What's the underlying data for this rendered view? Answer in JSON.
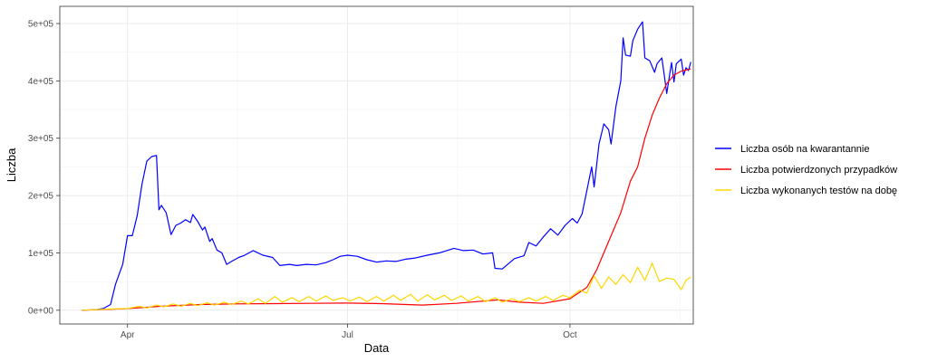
{
  "chart_data": {
    "type": "line",
    "xlabel": "Data",
    "ylabel": "Liczba",
    "x_range": [
      "2020-03-04",
      "2020-11-21"
    ],
    "y_range": [
      -24000,
      530000
    ],
    "x_ticks": [
      {
        "date": "2020-04-01",
        "label": "Apr"
      },
      {
        "date": "2020-07-01",
        "label": "Jul"
      },
      {
        "date": "2020-10-01",
        "label": "Oct"
      }
    ],
    "y_ticks": [
      {
        "value": 0,
        "label": "0e+00"
      },
      {
        "value": 100000,
        "label": "1e+05"
      },
      {
        "value": 200000,
        "label": "2e+05"
      },
      {
        "value": 300000,
        "label": "3e+05"
      },
      {
        "value": 400000,
        "label": "4e+05"
      },
      {
        "value": 500000,
        "label": "5e+05"
      }
    ],
    "grid": true,
    "legend_position": "right",
    "series": [
      {
        "name": "Liczba osób na kwarantannie",
        "color": "#0000ff",
        "points": [
          [
            "2020-03-13",
            0
          ],
          [
            "2020-03-19",
            1000
          ],
          [
            "2020-03-22",
            3000
          ],
          [
            "2020-03-25",
            10000
          ],
          [
            "2020-03-27",
            45000
          ],
          [
            "2020-03-30",
            80000
          ],
          [
            "2020-04-01",
            130000
          ],
          [
            "2020-04-03",
            130000
          ],
          [
            "2020-04-05",
            165000
          ],
          [
            "2020-04-07",
            220000
          ],
          [
            "2020-04-09",
            260000
          ],
          [
            "2020-04-11",
            268000
          ],
          [
            "2020-04-13",
            270000
          ],
          [
            "2020-04-14",
            175000
          ],
          [
            "2020-04-15",
            183000
          ],
          [
            "2020-04-17",
            170000
          ],
          [
            "2020-04-19",
            132000
          ],
          [
            "2020-04-21",
            148000
          ],
          [
            "2020-04-23",
            152000
          ],
          [
            "2020-04-25",
            158000
          ],
          [
            "2020-04-27",
            153000
          ],
          [
            "2020-04-28",
            167000
          ],
          [
            "2020-04-30",
            155000
          ],
          [
            "2020-05-02",
            140000
          ],
          [
            "2020-05-03",
            145000
          ],
          [
            "2020-05-05",
            120000
          ],
          [
            "2020-05-06",
            125000
          ],
          [
            "2020-05-08",
            105000
          ],
          [
            "2020-05-10",
            100000
          ],
          [
            "2020-05-12",
            80000
          ],
          [
            "2020-05-14",
            85000
          ],
          [
            "2020-05-17",
            92000
          ],
          [
            "2020-05-19",
            95000
          ],
          [
            "2020-05-23",
            104000
          ],
          [
            "2020-05-27",
            96000
          ],
          [
            "2020-05-31",
            92000
          ],
          [
            "2020-06-03",
            78000
          ],
          [
            "2020-06-07",
            80000
          ],
          [
            "2020-06-10",
            78000
          ],
          [
            "2020-06-14",
            80000
          ],
          [
            "2020-06-18",
            79000
          ],
          [
            "2020-06-22",
            83000
          ],
          [
            "2020-06-25",
            88000
          ],
          [
            "2020-06-28",
            94000
          ],
          [
            "2020-07-01",
            96000
          ],
          [
            "2020-07-05",
            94000
          ],
          [
            "2020-07-09",
            88000
          ],
          [
            "2020-07-13",
            84000
          ],
          [
            "2020-07-17",
            86000
          ],
          [
            "2020-07-21",
            85000
          ],
          [
            "2020-07-25",
            89000
          ],
          [
            "2020-07-29",
            91000
          ],
          [
            "2020-08-03",
            96000
          ],
          [
            "2020-08-08",
            100000
          ],
          [
            "2020-08-11",
            104000
          ],
          [
            "2020-08-14",
            108000
          ],
          [
            "2020-08-18",
            104000
          ],
          [
            "2020-08-22",
            105000
          ],
          [
            "2020-08-26",
            98000
          ],
          [
            "2020-08-30",
            100000
          ],
          [
            "2020-08-31",
            73000
          ],
          [
            "2020-09-03",
            72000
          ],
          [
            "2020-09-08",
            90000
          ],
          [
            "2020-09-12",
            95000
          ],
          [
            "2020-09-14",
            118000
          ],
          [
            "2020-09-17",
            112000
          ],
          [
            "2020-09-20",
            128000
          ],
          [
            "2020-09-23",
            142000
          ],
          [
            "2020-09-26",
            131000
          ],
          [
            "2020-09-29",
            148000
          ],
          [
            "2020-10-02",
            160000
          ],
          [
            "2020-10-04",
            152000
          ],
          [
            "2020-10-06",
            168000
          ],
          [
            "2020-10-09",
            230000
          ],
          [
            "2020-10-10",
            250000
          ],
          [
            "2020-10-11",
            215000
          ],
          [
            "2020-10-13",
            290000
          ],
          [
            "2020-10-15",
            325000
          ],
          [
            "2020-10-17",
            315000
          ],
          [
            "2020-10-18",
            290000
          ],
          [
            "2020-10-20",
            355000
          ],
          [
            "2020-10-22",
            400000
          ],
          [
            "2020-10-23",
            475000
          ],
          [
            "2020-10-24",
            445000
          ],
          [
            "2020-10-26",
            443000
          ],
          [
            "2020-10-27",
            470000
          ],
          [
            "2020-10-29",
            490000
          ],
          [
            "2020-10-31",
            503000
          ],
          [
            "2020-11-01",
            440000
          ],
          [
            "2020-11-03",
            435000
          ],
          [
            "2020-11-05",
            415000
          ],
          [
            "2020-11-06",
            430000
          ],
          [
            "2020-11-08",
            440000
          ],
          [
            "2020-11-09",
            410000
          ],
          [
            "2020-11-10",
            378000
          ],
          [
            "2020-11-12",
            432000
          ],
          [
            "2020-11-13",
            398000
          ],
          [
            "2020-11-14",
            430000
          ],
          [
            "2020-11-16",
            438000
          ],
          [
            "2020-11-17",
            410000
          ],
          [
            "2020-11-18",
            423000
          ],
          [
            "2020-11-19",
            418000
          ],
          [
            "2020-11-20",
            433000
          ]
        ]
      },
      {
        "name": "Liczba potwierdzonych przypadków",
        "color": "#ff0000",
        "points": [
          [
            "2020-03-13",
            0
          ],
          [
            "2020-03-31",
            2500
          ],
          [
            "2020-04-15",
            7000
          ],
          [
            "2020-05-01",
            10000
          ],
          [
            "2020-05-15",
            11000
          ],
          [
            "2020-06-01",
            11500
          ],
          [
            "2020-06-15",
            12000
          ],
          [
            "2020-07-01",
            12500
          ],
          [
            "2020-07-15",
            11500
          ],
          [
            "2020-08-01",
            9000
          ],
          [
            "2020-08-15",
            12000
          ],
          [
            "2020-09-01",
            18000
          ],
          [
            "2020-09-10",
            14000
          ],
          [
            "2020-09-20",
            12000
          ],
          [
            "2020-10-01",
            20000
          ],
          [
            "2020-10-08",
            40000
          ],
          [
            "2020-10-12",
            70000
          ],
          [
            "2020-10-15",
            100000
          ],
          [
            "2020-10-18",
            130000
          ],
          [
            "2020-10-22",
            170000
          ],
          [
            "2020-10-26",
            225000
          ],
          [
            "2020-10-29",
            250000
          ],
          [
            "2020-11-01",
            300000
          ],
          [
            "2020-11-04",
            340000
          ],
          [
            "2020-11-07",
            370000
          ],
          [
            "2020-11-10",
            395000
          ],
          [
            "2020-11-13",
            410000
          ],
          [
            "2020-11-16",
            417000
          ],
          [
            "2020-11-20",
            421000
          ]
        ]
      },
      {
        "name": "Liczba wykonanych testów na dobę",
        "color": "#ffd700",
        "points": [
          [
            "2020-03-13",
            0
          ],
          [
            "2020-03-24",
            2000
          ],
          [
            "2020-04-01",
            3000
          ],
          [
            "2020-04-06",
            7000
          ],
          [
            "2020-04-09",
            4000
          ],
          [
            "2020-04-13",
            9000
          ],
          [
            "2020-04-16",
            6000
          ],
          [
            "2020-04-20",
            11000
          ],
          [
            "2020-04-23",
            7000
          ],
          [
            "2020-04-27",
            12000
          ],
          [
            "2020-04-30",
            8000
          ],
          [
            "2020-05-04",
            13000
          ],
          [
            "2020-05-07",
            9000
          ],
          [
            "2020-05-11",
            14000
          ],
          [
            "2020-05-14",
            10000
          ],
          [
            "2020-05-18",
            16000
          ],
          [
            "2020-05-21",
            11000
          ],
          [
            "2020-05-25",
            20000
          ],
          [
            "2020-05-28",
            12000
          ],
          [
            "2020-06-01",
            24000
          ],
          [
            "2020-06-04",
            14000
          ],
          [
            "2020-06-08",
            22000
          ],
          [
            "2020-06-11",
            15000
          ],
          [
            "2020-06-15",
            24000
          ],
          [
            "2020-06-18",
            16000
          ],
          [
            "2020-06-22",
            25000
          ],
          [
            "2020-06-25",
            17000
          ],
          [
            "2020-06-29",
            22000
          ],
          [
            "2020-07-02",
            16000
          ],
          [
            "2020-07-06",
            23000
          ],
          [
            "2020-07-09",
            15000
          ],
          [
            "2020-07-13",
            24000
          ],
          [
            "2020-07-16",
            16000
          ],
          [
            "2020-07-20",
            26000
          ],
          [
            "2020-07-23",
            17000
          ],
          [
            "2020-07-27",
            28000
          ],
          [
            "2020-07-30",
            16000
          ],
          [
            "2020-08-03",
            27000
          ],
          [
            "2020-08-06",
            18000
          ],
          [
            "2020-08-10",
            26000
          ],
          [
            "2020-08-13",
            17000
          ],
          [
            "2020-08-17",
            25000
          ],
          [
            "2020-08-20",
            16000
          ],
          [
            "2020-08-24",
            24000
          ],
          [
            "2020-08-27",
            15000
          ],
          [
            "2020-08-31",
            22000
          ],
          [
            "2020-09-03",
            14000
          ],
          [
            "2020-09-07",
            20000
          ],
          [
            "2020-09-10",
            15000
          ],
          [
            "2020-09-14",
            22000
          ],
          [
            "2020-09-17",
            16000
          ],
          [
            "2020-09-21",
            24000
          ],
          [
            "2020-09-24",
            17000
          ],
          [
            "2020-09-28",
            26000
          ],
          [
            "2020-10-01",
            22000
          ],
          [
            "2020-10-05",
            35000
          ],
          [
            "2020-10-08",
            30000
          ],
          [
            "2020-10-11",
            60000
          ],
          [
            "2020-10-14",
            38000
          ],
          [
            "2020-10-17",
            58000
          ],
          [
            "2020-10-20",
            45000
          ],
          [
            "2020-10-23",
            62000
          ],
          [
            "2020-10-26",
            48000
          ],
          [
            "2020-10-29",
            75000
          ],
          [
            "2020-11-01",
            52000
          ],
          [
            "2020-11-04",
            82000
          ],
          [
            "2020-11-07",
            50000
          ],
          [
            "2020-11-10",
            56000
          ],
          [
            "2020-11-13",
            54000
          ],
          [
            "2020-11-16",
            36000
          ],
          [
            "2020-11-18",
            52000
          ],
          [
            "2020-11-20",
            58000
          ]
        ]
      }
    ]
  }
}
